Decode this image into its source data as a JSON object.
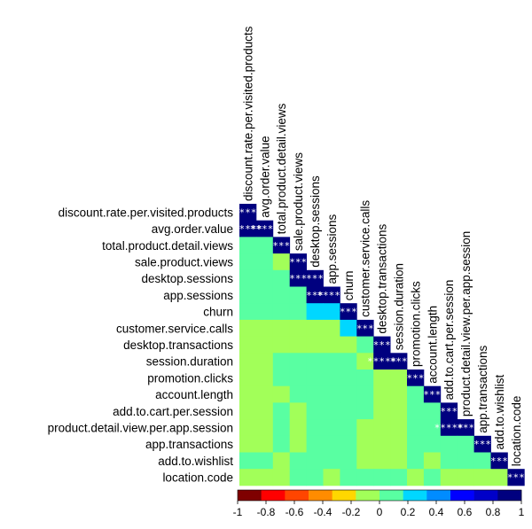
{
  "chart_data": {
    "type": "heatmap",
    "title": "",
    "variables": [
      "discount.rate.per.visited.products",
      "avg.order.value",
      "total.product.detail.views",
      "sale.product.views",
      "desktop.sessions",
      "app.sessions",
      "churn",
      "customer.service.calls",
      "desktop.transactions",
      "session.duration",
      "promotion.clicks",
      "account.length",
      "add.to.cart.per.session",
      "product.detail.view.per.app.session",
      "app.transactions",
      "add.to.wishlist",
      "location.code"
    ],
    "matrix": [
      [
        1
      ],
      [
        1,
        1
      ],
      [
        0.1,
        0.1,
        1
      ],
      [
        0.1,
        0.1,
        -0.1,
        1
      ],
      [
        0.1,
        0.1,
        0.1,
        1,
        1
      ],
      [
        0.1,
        0.1,
        0.1,
        0.1,
        1,
        1
      ],
      [
        0.1,
        0.1,
        0.1,
        0.1,
        0.3,
        0.3,
        1
      ],
      [
        -0.1,
        -0.1,
        -0.1,
        -0.1,
        -0.1,
        -0.1,
        0.3,
        1
      ],
      [
        -0.1,
        -0.1,
        -0.1,
        -0.1,
        -0.1,
        -0.1,
        -0.1,
        0.1,
        1
      ],
      [
        -0.1,
        -0.1,
        0.1,
        0.1,
        0.1,
        0.1,
        0.1,
        -0.1,
        1,
        1
      ],
      [
        -0.1,
        -0.1,
        0.1,
        0.1,
        0.1,
        0.1,
        0.1,
        0.1,
        -0.1,
        -0.1,
        1
      ],
      [
        -0.1,
        -0.1,
        -0.1,
        0.1,
        0.1,
        0.1,
        0.1,
        0.1,
        -0.1,
        -0.1,
        0.1,
        1
      ],
      [
        -0.1,
        -0.1,
        0.1,
        -0.1,
        0.1,
        0.1,
        0.1,
        0.1,
        -0.1,
        -0.1,
        0.1,
        0.1,
        1
      ],
      [
        -0.1,
        -0.1,
        0.1,
        -0.1,
        0.1,
        0.1,
        0.1,
        -0.1,
        -0.1,
        -0.1,
        0.1,
        0.1,
        1,
        1
      ],
      [
        -0.1,
        -0.1,
        0.1,
        -0.1,
        0.1,
        0.1,
        0.1,
        -0.1,
        -0.1,
        -0.1,
        0.1,
        0.1,
        0.1,
        0.1,
        1
      ],
      [
        0.1,
        0.1,
        -0.1,
        0.1,
        0.1,
        0.1,
        0.1,
        -0.1,
        -0.1,
        -0.1,
        0.1,
        -0.1,
        0.1,
        0.1,
        0.1,
        1
      ],
      [
        -0.1,
        -0.1,
        -0.1,
        0.1,
        0.1,
        -0.1,
        0.1,
        0.1,
        0.1,
        0.1,
        -0.1,
        0.1,
        -0.1,
        -0.1,
        -0.1,
        -0.1,
        1
      ]
    ],
    "significance": [
      [
        "***"
      ],
      [
        "*****",
        "*****"
      ],
      [
        "",
        "",
        "***"
      ],
      [
        "",
        "",
        "",
        "***"
      ],
      [
        "",
        "",
        "",
        "***",
        "***"
      ],
      [
        "",
        "",
        "",
        "",
        "***",
        "*****"
      ],
      [
        "",
        "",
        "",
        "",
        "",
        "",
        "***"
      ],
      [
        "",
        "",
        "",
        "",
        "",
        "",
        "",
        "***"
      ],
      [
        "",
        "",
        "",
        "",
        "",
        "",
        "",
        "",
        "***"
      ],
      [
        "",
        "",
        "",
        "",
        "",
        "",
        "",
        "",
        "*****",
        "***"
      ],
      [
        "",
        "",
        "",
        "",
        "",
        "",
        "",
        "",
        "",
        "",
        "***"
      ],
      [
        "",
        "",
        "",
        "",
        "",
        "",
        "",
        "",
        "",
        "",
        "",
        "***"
      ],
      [
        "",
        "",
        "",
        "",
        "",
        "",
        "",
        "",
        "",
        "",
        "",
        "",
        "***"
      ],
      [
        "",
        "",
        "",
        "",
        "",
        "",
        "",
        "",
        "",
        "",
        "",
        "",
        "*****",
        "***"
      ],
      [
        "",
        "",
        "",
        "",
        "",
        "",
        "",
        "",
        "",
        "",
        "",
        "",
        "",
        "",
        "***"
      ],
      [
        "",
        "",
        "",
        "",
        "",
        "",
        "",
        "",
        "",
        "",
        "",
        "",
        "",
        "",
        "",
        "***"
      ],
      [
        "",
        "",
        "",
        "",
        "",
        "",
        "",
        "",
        "",
        "",
        "",
        "",
        "",
        "",
        "",
        "",
        "***"
      ]
    ],
    "color_scale": {
      "range": [
        -1,
        1
      ],
      "colors": [
        "#7f0000",
        "#ff0000",
        "#ff4500",
        "#ff8c00",
        "#ffd700",
        "#a2ff59",
        "#59ffa2",
        "#00d7ff",
        "#008cff",
        "#0000ff",
        "#0000c8",
        "#00007f"
      ],
      "ticks": [
        "-1",
        "-0.8",
        "-0.6",
        "-0.4",
        "-0.2",
        "0",
        "0.2",
        "0.4",
        "0.6",
        "0.8",
        "1"
      ]
    },
    "legend_position": "bottom"
  }
}
